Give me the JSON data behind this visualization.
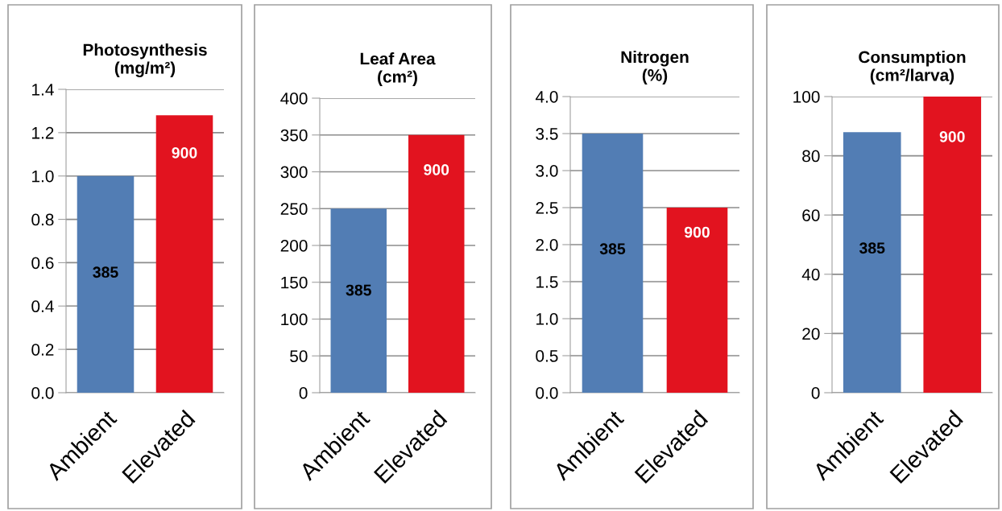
{
  "chart_data": [
    {
      "type": "bar",
      "title": "Photosynthesis\n(mg/m²)",
      "categories": [
        "Ambient",
        "Elevated"
      ],
      "values": [
        1.0,
        1.28
      ],
      "colors": [
        "#527db4",
        "#e2131f"
      ],
      "ylim": [
        0,
        1.4
      ],
      "yticks": [
        {
          "value": 0,
          "label": "0.0"
        },
        {
          "value": 0.2,
          "label": "0.2"
        },
        {
          "value": 0.4,
          "label": "0.4"
        },
        {
          "value": 0.6,
          "label": "0.6"
        },
        {
          "value": 0.8,
          "label": "0.8"
        },
        {
          "value": 1.0,
          "label": "1.0"
        },
        {
          "value": 1.2,
          "label": "1.2"
        },
        {
          "value": 1.4,
          "label": "1.4"
        }
      ],
      "grid": "y",
      "annotations": [
        "385",
        "900"
      ]
    },
    {
      "type": "bar",
      "title": "Leaf Area\n(cm²)",
      "categories": [
        "Ambient",
        "Elevated"
      ],
      "values": [
        250,
        350
      ],
      "colors": [
        "#527db4",
        "#e2131f"
      ],
      "ylim": [
        0,
        400
      ],
      "yticks": [
        0,
        50,
        100,
        150,
        200,
        250,
        300,
        350,
        400
      ],
      "grid": "y",
      "annotations": [
        "385",
        "900"
      ]
    },
    {
      "type": "bar",
      "title": "Nitrogen\n(%)",
      "categories": [
        "Ambient",
        "Elevated"
      ],
      "values": [
        3.5,
        2.5
      ],
      "colors": [
        "#527db4",
        "#e2131f"
      ],
      "ylim": [
        0,
        4.0
      ],
      "yticks": [
        {
          "value": 0,
          "label": "0.0"
        },
        {
          "value": 0.5,
          "label": "0.5"
        },
        {
          "value": 1.0,
          "label": "1.0"
        },
        {
          "value": 1.5,
          "label": "1.5"
        },
        {
          "value": 2.0,
          "label": "2.0"
        },
        {
          "value": 2.5,
          "label": "2.5"
        },
        {
          "value": 3.0,
          "label": "3.0"
        },
        {
          "value": 3.5,
          "label": "3.5"
        },
        {
          "value": 4.0,
          "label": "4.0"
        }
      ],
      "grid": "y",
      "annotations": [
        "385",
        "900"
      ]
    },
    {
      "type": "bar",
      "title": "Consumption\n(cm²/larva)",
      "categories": [
        "Ambient",
        "Elevated"
      ],
      "values": [
        88,
        100
      ],
      "colors": [
        "#527db4",
        "#e2131f"
      ],
      "ylim": [
        0,
        100
      ],
      "yticks": [
        0,
        20,
        40,
        60,
        80,
        100
      ],
      "grid": "y",
      "annotations": [
        "385",
        "900"
      ]
    }
  ]
}
